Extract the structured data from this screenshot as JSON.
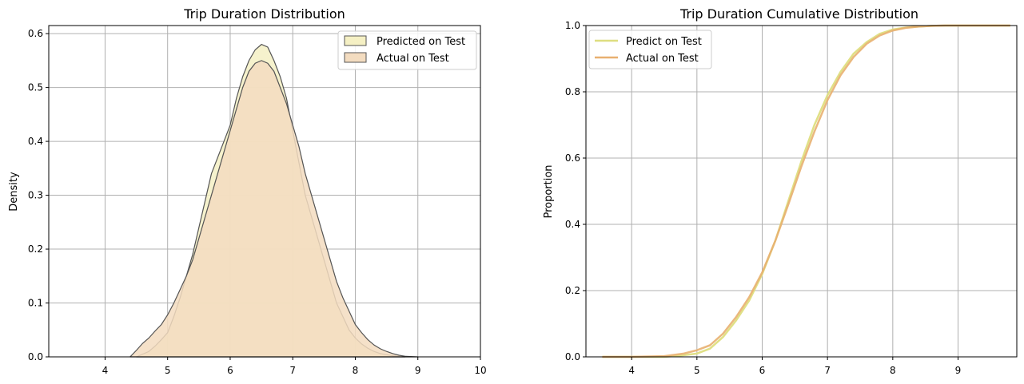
{
  "chart_data": [
    {
      "type": "area",
      "title": "Trip Duration Distribution",
      "xlabel": "",
      "ylabel": "Density",
      "xlim": [
        3.1,
        10.0
      ],
      "ylim": [
        0,
        0.615
      ],
      "xticks": [
        4,
        5,
        6,
        7,
        8,
        9,
        10
      ],
      "yticks": [
        0.0,
        0.1,
        0.2,
        0.3,
        0.4,
        0.5,
        0.6
      ],
      "grid": true,
      "legend_position": "top-right",
      "series": [
        {
          "name": "Predicted on Test",
          "color": "#f5f0c4",
          "edge": "#555555",
          "x": [
            4.5,
            4.6,
            4.7,
            4.8,
            4.9,
            5.0,
            5.1,
            5.2,
            5.3,
            5.4,
            5.5,
            5.6,
            5.7,
            5.8,
            5.9,
            6.0,
            6.1,
            6.2,
            6.3,
            6.4,
            6.5,
            6.6,
            6.7,
            6.8,
            6.9,
            7.0,
            7.1,
            7.2,
            7.3,
            7.4,
            7.5,
            7.6,
            7.7,
            7.8,
            7.9,
            8.0,
            8.1,
            8.2,
            8.3,
            8.4,
            8.5,
            8.6,
            8.8
          ],
          "y": [
            0.0,
            0.005,
            0.01,
            0.02,
            0.032,
            0.045,
            0.075,
            0.11,
            0.15,
            0.19,
            0.24,
            0.29,
            0.34,
            0.37,
            0.4,
            0.43,
            0.48,
            0.52,
            0.55,
            0.57,
            0.58,
            0.575,
            0.55,
            0.52,
            0.48,
            0.42,
            0.36,
            0.3,
            0.26,
            0.22,
            0.18,
            0.14,
            0.1,
            0.075,
            0.05,
            0.035,
            0.024,
            0.016,
            0.01,
            0.006,
            0.004,
            0.002,
            0.0
          ]
        },
        {
          "name": "Actual on Test",
          "color": "#f3dcc0",
          "edge": "#555555",
          "x": [
            4.4,
            4.5,
            4.6,
            4.7,
            4.8,
            4.9,
            5.0,
            5.1,
            5.2,
            5.3,
            5.4,
            5.5,
            5.6,
            5.7,
            5.8,
            5.9,
            6.0,
            6.1,
            6.2,
            6.3,
            6.4,
            6.5,
            6.6,
            6.7,
            6.8,
            6.9,
            7.0,
            7.1,
            7.2,
            7.3,
            7.4,
            7.5,
            7.6,
            7.7,
            7.8,
            7.9,
            8.0,
            8.1,
            8.2,
            8.3,
            8.4,
            8.5,
            8.6,
            8.7,
            8.8,
            9.0
          ],
          "y": [
            0.0,
            0.012,
            0.025,
            0.035,
            0.048,
            0.06,
            0.078,
            0.1,
            0.125,
            0.15,
            0.18,
            0.22,
            0.26,
            0.3,
            0.34,
            0.38,
            0.42,
            0.46,
            0.5,
            0.53,
            0.545,
            0.55,
            0.545,
            0.53,
            0.5,
            0.47,
            0.43,
            0.39,
            0.34,
            0.3,
            0.26,
            0.22,
            0.18,
            0.14,
            0.11,
            0.085,
            0.06,
            0.045,
            0.032,
            0.022,
            0.015,
            0.01,
            0.006,
            0.003,
            0.001,
            0.0
          ]
        }
      ]
    },
    {
      "type": "line",
      "title": "Trip Duration Cumulative Distribution",
      "xlabel": "",
      "ylabel": "Proportion",
      "xlim": [
        3.3,
        9.9
      ],
      "ylim": [
        0,
        1.0
      ],
      "xticks": [
        4,
        5,
        6,
        7,
        8,
        9
      ],
      "yticks": [
        0.0,
        0.2,
        0.4,
        0.6,
        0.8,
        1.0
      ],
      "grid": true,
      "legend_position": "top-left",
      "series": [
        {
          "name": "Predict on Test",
          "color": "#dede80",
          "x": [
            3.55,
            4.0,
            4.5,
            4.8,
            5.0,
            5.2,
            5.4,
            5.6,
            5.8,
            6.0,
            6.2,
            6.4,
            6.6,
            6.8,
            7.0,
            7.2,
            7.4,
            7.6,
            7.8,
            8.0,
            8.2,
            8.4,
            8.6,
            8.8,
            9.0,
            9.5,
            9.8
          ],
          "y": [
            0.0,
            0.0,
            0.0,
            0.005,
            0.01,
            0.025,
            0.06,
            0.11,
            0.17,
            0.25,
            0.35,
            0.47,
            0.59,
            0.7,
            0.79,
            0.86,
            0.915,
            0.95,
            0.975,
            0.988,
            0.994,
            0.997,
            0.999,
            1.0,
            1.0,
            1.0,
            1.0
          ]
        },
        {
          "name": "Actual on Test",
          "color": "#e8b070",
          "x": [
            3.55,
            4.0,
            4.5,
            4.8,
            5.0,
            5.2,
            5.4,
            5.6,
            5.8,
            6.0,
            6.2,
            6.4,
            6.6,
            6.8,
            7.0,
            7.2,
            7.4,
            7.6,
            7.8,
            8.0,
            8.2,
            8.4,
            8.6,
            8.8,
            9.0,
            9.5,
            9.8
          ],
          "y": [
            0.0,
            0.0,
            0.002,
            0.01,
            0.02,
            0.035,
            0.07,
            0.12,
            0.18,
            0.255,
            0.35,
            0.46,
            0.575,
            0.68,
            0.775,
            0.85,
            0.905,
            0.945,
            0.97,
            0.985,
            0.993,
            0.997,
            0.999,
            1.0,
            1.0,
            1.0,
            1.0
          ]
        }
      ]
    }
  ]
}
